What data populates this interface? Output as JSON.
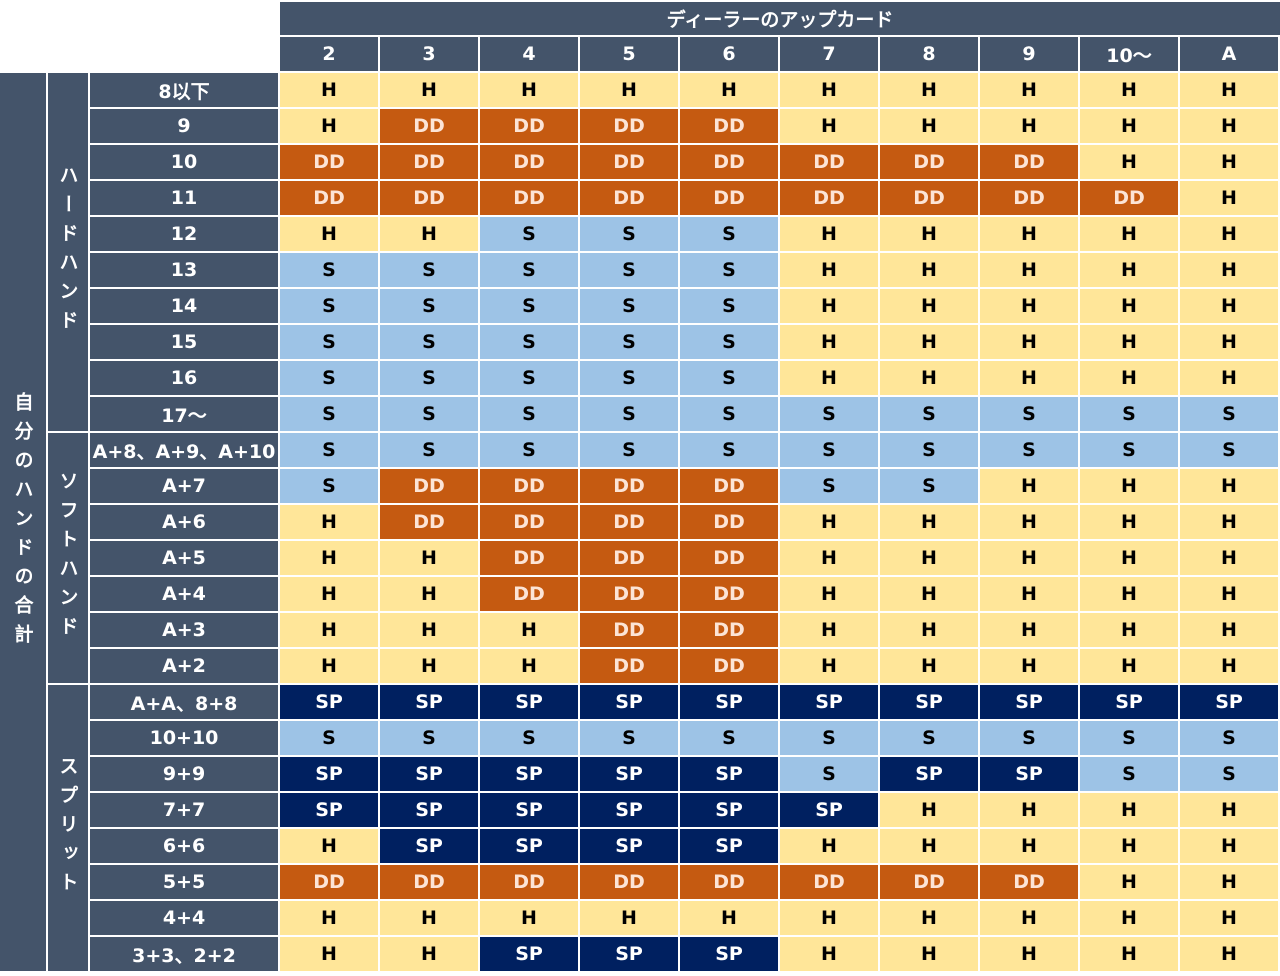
{
  "header": {
    "title": "ディーラーのアップカード",
    "columns": [
      "2",
      "3",
      "4",
      "5",
      "6",
      "7",
      "8",
      "9",
      "10〜",
      "A"
    ]
  },
  "row_axis_label": "自分のハンドの合計",
  "colors": {
    "header": "#44546A",
    "H": "#FFE699",
    "DD": "#C55A11",
    "S": "#9DC3E6",
    "SP": "#002060"
  },
  "groups": [
    {
      "label": "ハードハンド",
      "rows": [
        {
          "label": "8以下",
          "cells": [
            "H",
            "H",
            "H",
            "H",
            "H",
            "H",
            "H",
            "H",
            "H",
            "H"
          ]
        },
        {
          "label": "9",
          "cells": [
            "H",
            "DD",
            "DD",
            "DD",
            "DD",
            "H",
            "H",
            "H",
            "H",
            "H"
          ]
        },
        {
          "label": "10",
          "cells": [
            "DD",
            "DD",
            "DD",
            "DD",
            "DD",
            "DD",
            "DD",
            "DD",
            "H",
            "H"
          ]
        },
        {
          "label": "11",
          "cells": [
            "DD",
            "DD",
            "DD",
            "DD",
            "DD",
            "DD",
            "DD",
            "DD",
            "DD",
            "H"
          ]
        },
        {
          "label": "12",
          "cells": [
            "H",
            "H",
            "S",
            "S",
            "S",
            "H",
            "H",
            "H",
            "H",
            "H"
          ]
        },
        {
          "label": "13",
          "cells": [
            "S",
            "S",
            "S",
            "S",
            "S",
            "H",
            "H",
            "H",
            "H",
            "H"
          ]
        },
        {
          "label": "14",
          "cells": [
            "S",
            "S",
            "S",
            "S",
            "S",
            "H",
            "H",
            "H",
            "H",
            "H"
          ]
        },
        {
          "label": "15",
          "cells": [
            "S",
            "S",
            "S",
            "S",
            "S",
            "H",
            "H",
            "H",
            "H",
            "H"
          ]
        },
        {
          "label": "16",
          "cells": [
            "S",
            "S",
            "S",
            "S",
            "S",
            "H",
            "H",
            "H",
            "H",
            "H"
          ]
        },
        {
          "label": "17〜",
          "cells": [
            "S",
            "S",
            "S",
            "S",
            "S",
            "S",
            "S",
            "S",
            "S",
            "S"
          ]
        }
      ]
    },
    {
      "label": "ソフトハンド",
      "rows": [
        {
          "label": "A+8、A+9、A+10",
          "cells": [
            "S",
            "S",
            "S",
            "S",
            "S",
            "S",
            "S",
            "S",
            "S",
            "S"
          ]
        },
        {
          "label": "A+7",
          "cells": [
            "S",
            "DD",
            "DD",
            "DD",
            "DD",
            "S",
            "S",
            "H",
            "H",
            "H"
          ]
        },
        {
          "label": "A+6",
          "cells": [
            "H",
            "DD",
            "DD",
            "DD",
            "DD",
            "H",
            "H",
            "H",
            "H",
            "H"
          ]
        },
        {
          "label": "A+5",
          "cells": [
            "H",
            "H",
            "DD",
            "DD",
            "DD",
            "H",
            "H",
            "H",
            "H",
            "H"
          ]
        },
        {
          "label": "A+4",
          "cells": [
            "H",
            "H",
            "DD",
            "DD",
            "DD",
            "H",
            "H",
            "H",
            "H",
            "H"
          ]
        },
        {
          "label": "A+3",
          "cells": [
            "H",
            "H",
            "H",
            "DD",
            "DD",
            "H",
            "H",
            "H",
            "H",
            "H"
          ]
        },
        {
          "label": "A+2",
          "cells": [
            "H",
            "H",
            "H",
            "DD",
            "DD",
            "H",
            "H",
            "H",
            "H",
            "H"
          ]
        }
      ]
    },
    {
      "label": "スプリット",
      "rows": [
        {
          "label": "A+A、8+8",
          "cells": [
            "SP",
            "SP",
            "SP",
            "SP",
            "SP",
            "SP",
            "SP",
            "SP",
            "SP",
            "SP"
          ]
        },
        {
          "label": "10+10",
          "cells": [
            "S",
            "S",
            "S",
            "S",
            "S",
            "S",
            "S",
            "S",
            "S",
            "S"
          ]
        },
        {
          "label": "9+9",
          "cells": [
            "SP",
            "SP",
            "SP",
            "SP",
            "SP",
            "S",
            "SP",
            "SP",
            "S",
            "S"
          ]
        },
        {
          "label": "7+7",
          "cells": [
            "SP",
            "SP",
            "SP",
            "SP",
            "SP",
            "SP",
            "H",
            "H",
            "H",
            "H"
          ]
        },
        {
          "label": "6+6",
          "cells": [
            "H",
            "SP",
            "SP",
            "SP",
            "SP",
            "H",
            "H",
            "H",
            "H",
            "H"
          ]
        },
        {
          "label": "5+5",
          "cells": [
            "DD",
            "DD",
            "DD",
            "DD",
            "DD",
            "DD",
            "DD",
            "DD",
            "H",
            "H"
          ]
        },
        {
          "label": "4+4",
          "cells": [
            "H",
            "H",
            "H",
            "H",
            "H",
            "H",
            "H",
            "H",
            "H",
            "H"
          ]
        },
        {
          "label": "3+3、2+2",
          "cells": [
            "H",
            "H",
            "SP",
            "SP",
            "SP",
            "H",
            "H",
            "H",
            "H",
            "H"
          ]
        }
      ]
    }
  ]
}
